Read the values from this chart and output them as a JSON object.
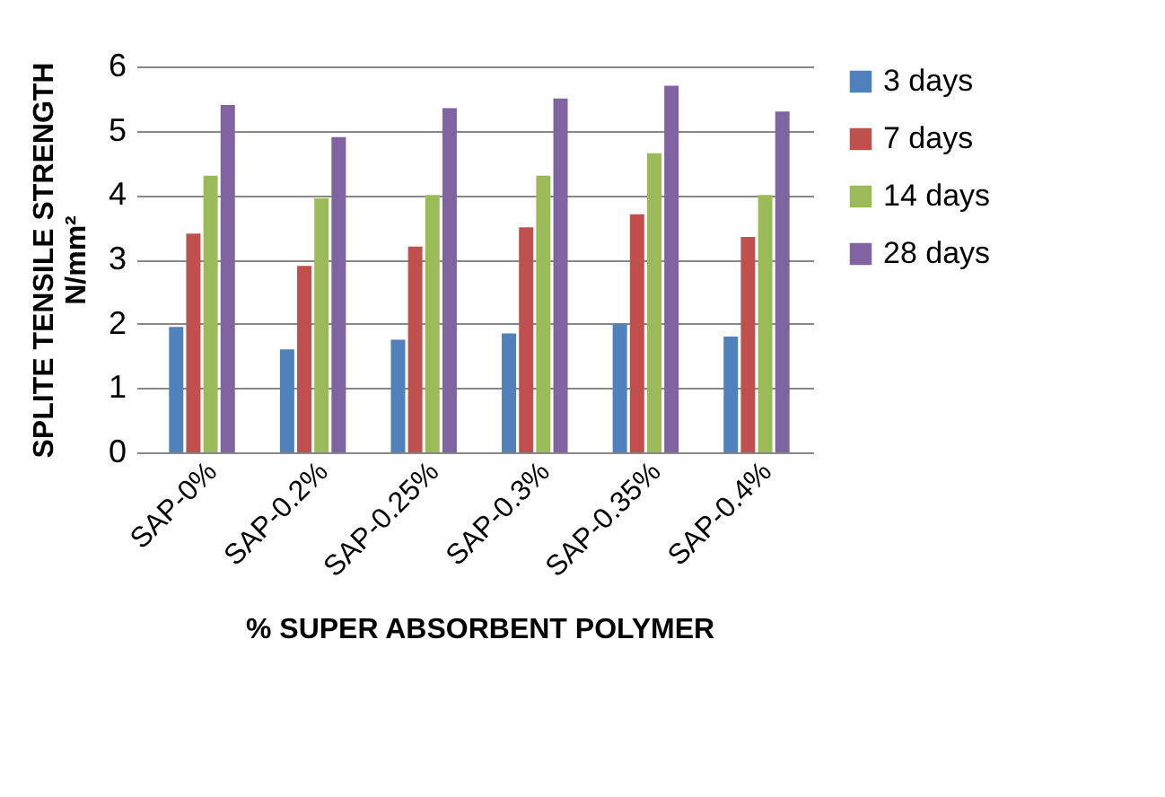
{
  "chart_data": {
    "type": "bar",
    "xlabel": "% SUPER ABSORBENT POLYMER",
    "ylabel": "SPLITE  TENSILE  STRENGTH\nN/mm²",
    "categories": [
      "SAP-0%",
      "SAP-0.2%",
      "SAP-0.25%",
      "SAP-0.3%",
      "SAP-0.35%",
      "SAP-0.4%"
    ],
    "series": [
      {
        "name": "3 days",
        "color": "#4f81bd",
        "values": [
          1.95,
          1.6,
          1.75,
          1.85,
          2.0,
          1.8
        ]
      },
      {
        "name": "7 days",
        "color": "#c0504d",
        "values": [
          3.4,
          2.9,
          3.2,
          3.5,
          3.7,
          3.35
        ]
      },
      {
        "name": "14 days",
        "color": "#9bbb59",
        "values": [
          4.3,
          3.95,
          4.0,
          4.3,
          4.65,
          4.0
        ]
      },
      {
        "name": "28 days",
        "color": "#8064a2",
        "values": [
          5.4,
          4.9,
          5.35,
          5.5,
          5.7,
          5.3
        ]
      }
    ],
    "ylim": [
      0,
      6
    ],
    "yticks": [
      0,
      1,
      2,
      3,
      4,
      5,
      6
    ],
    "grid": "y",
    "legend": "right"
  }
}
